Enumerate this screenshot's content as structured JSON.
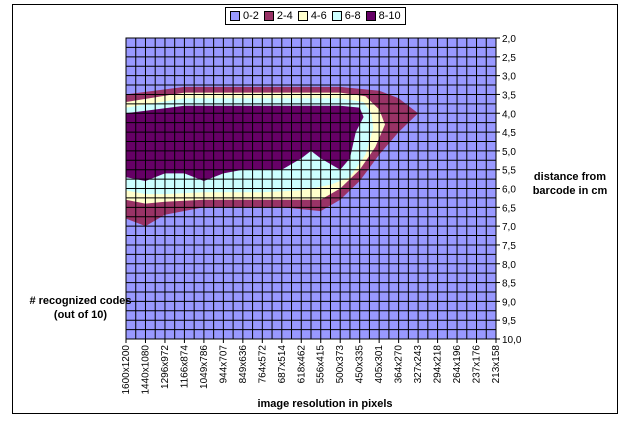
{
  "chart_data": {
    "type": "heatmap",
    "subtype": "contour",
    "legend": {
      "placement": "top",
      "entries": [
        {
          "label": "0-2",
          "color": "#9999ff"
        },
        {
          "label": "2-4",
          "color": "#993366"
        },
        {
          "label": "4-6",
          "color": "#ffffcc"
        },
        {
          "label": "6-8",
          "color": "#ccffff"
        },
        {
          "label": "8-10",
          "color": "#660066"
        }
      ]
    },
    "xlabel": "image resolution in pixels",
    "ylabel": "distance from barcode in cm",
    "zlabel": "# recognized codes (out of 10)",
    "x_categories": [
      "1600x1200",
      "1440x1080",
      "1296x972",
      "1166x874",
      "1049x786",
      "944x707",
      "849x636",
      "764x572",
      "687x514",
      "618x462",
      "556x415",
      "500x373",
      "450x335",
      "405x301",
      "364x270",
      "327x243",
      "294x218",
      "264x196",
      "237x176",
      "213x158"
    ],
    "y_categories": [
      "2,0",
      "2,5",
      "3,0",
      "3,5",
      "4,0",
      "4,5",
      "5,0",
      "5,5",
      "6,0",
      "6,5",
      "7,0",
      "7,5",
      "8,0",
      "8,5",
      "9,0",
      "9,5",
      "10,0"
    ],
    "grid": true,
    "levels": [
      {
        "label": "2-4",
        "color": "#993366",
        "polygon": [
          [
            0,
            3.5
          ],
          [
            3,
            3.3
          ],
          [
            11,
            3.3
          ],
          [
            13,
            3.4
          ],
          [
            14,
            3.6
          ],
          [
            15,
            4.0
          ],
          [
            14,
            4.5
          ],
          [
            13,
            5.1
          ],
          [
            12,
            5.8
          ],
          [
            11,
            6.3
          ],
          [
            10,
            6.6
          ],
          [
            8,
            6.5
          ],
          [
            4,
            6.5
          ],
          [
            2,
            6.7
          ],
          [
            1,
            7.0
          ],
          [
            0,
            6.8
          ]
        ]
      },
      {
        "label": "4-6",
        "color": "#ffffcc",
        "polygon": [
          [
            0,
            3.7
          ],
          [
            3,
            3.45
          ],
          [
            11,
            3.45
          ],
          [
            12.3,
            3.55
          ],
          [
            13,
            3.9
          ],
          [
            13.3,
            4.3
          ],
          [
            12.8,
            4.9
          ],
          [
            12,
            5.5
          ],
          [
            11,
            6.0
          ],
          [
            10,
            6.3
          ],
          [
            8,
            6.3
          ],
          [
            4,
            6.3
          ],
          [
            2,
            6.35
          ],
          [
            1,
            6.4
          ],
          [
            0,
            6.3
          ]
        ]
      },
      {
        "label": "6-8",
        "color": "#ccffff",
        "polygon": [
          [
            0,
            3.85
          ],
          [
            3,
            3.6
          ],
          [
            11,
            3.6
          ],
          [
            12.2,
            3.7
          ],
          [
            12.6,
            4.0
          ],
          [
            12.7,
            4.4
          ],
          [
            12.3,
            5.1
          ],
          [
            11.5,
            5.7
          ],
          [
            10.5,
            5.9
          ],
          [
            9,
            6.05
          ],
          [
            7,
            6.1
          ],
          [
            4,
            6.1
          ],
          [
            2,
            6.15
          ],
          [
            1,
            6.15
          ],
          [
            0,
            6.05
          ]
        ]
      },
      {
        "label": "8-10",
        "color": "#660066",
        "polygon": [
          [
            0,
            4.0
          ],
          [
            3,
            3.8
          ],
          [
            11,
            3.8
          ],
          [
            12,
            3.85
          ],
          [
            12.2,
            4.1
          ],
          [
            11.8,
            4.5
          ],
          [
            11.5,
            5.2
          ],
          [
            11,
            5.5
          ],
          [
            10,
            5.2
          ],
          [
            9.5,
            5.0
          ],
          [
            9,
            5.2
          ],
          [
            8,
            5.5
          ],
          [
            6,
            5.5
          ],
          [
            5,
            5.6
          ],
          [
            4,
            5.8
          ],
          [
            3,
            5.6
          ],
          [
            2,
            5.6
          ],
          [
            1,
            5.8
          ],
          [
            0,
            5.7
          ]
        ]
      }
    ]
  }
}
